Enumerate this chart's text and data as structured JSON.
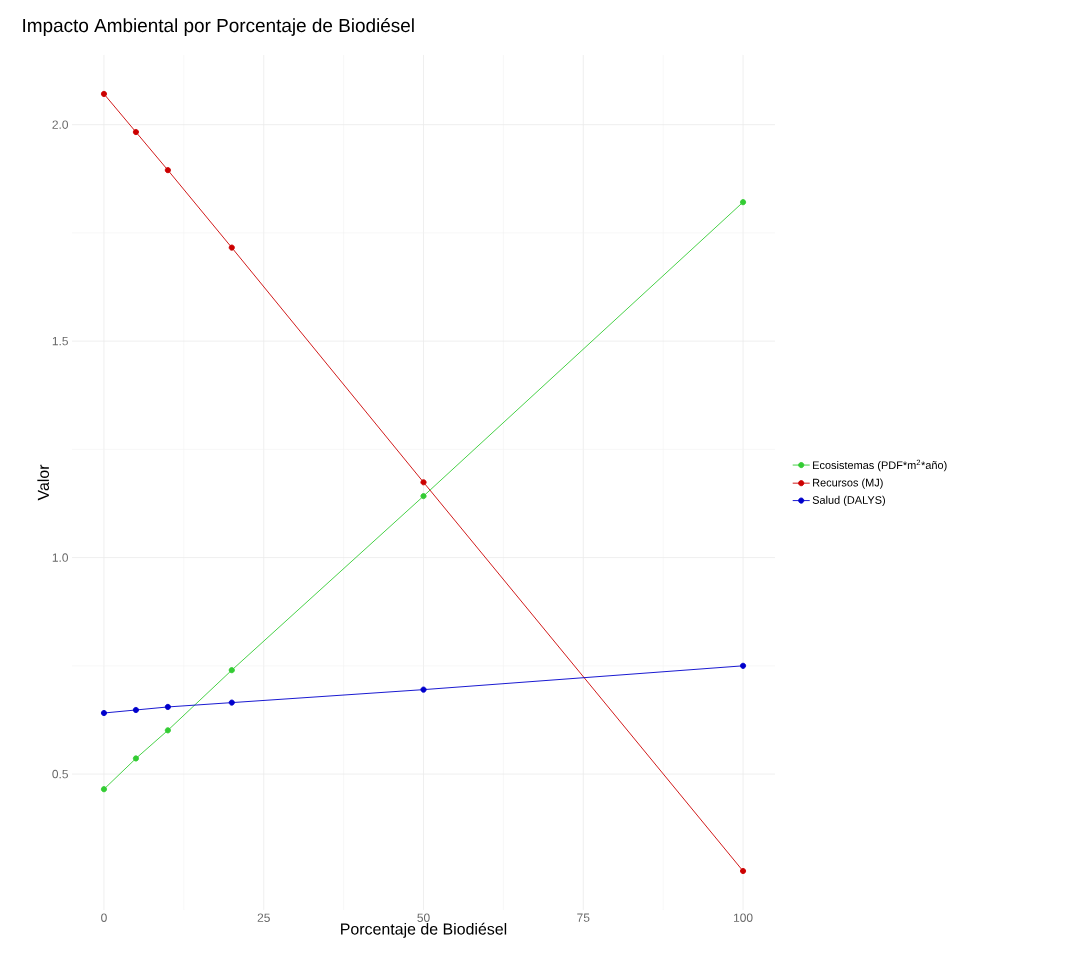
{
  "chart_data": {
    "type": "line",
    "title": "Impacto Ambiental por Porcentaje de Biodiésel",
    "xlabel": "Porcentaje de Biodiésel",
    "ylabel": "Valor",
    "x": [
      0,
      5,
      10,
      20,
      50,
      100
    ],
    "series": [
      {
        "name": "Ecosistemas (PDF*m$^{2}$*año)",
        "color": "#33cc33",
        "values": [
          0.465,
          0.536,
          0.601,
          0.74,
          1.142,
          1.821
        ]
      },
      {
        "name": "Recursos (MJ)",
        "color": "#cc0000",
        "values": [
          2.071,
          1.983,
          1.895,
          1.716,
          1.174,
          0.276
        ]
      },
      {
        "name": "Salud (DALYS)",
        "color": "#0000cc",
        "values": [
          0.641,
          0.648,
          0.655,
          0.665,
          0.695,
          0.75
        ]
      }
    ],
    "xlim": [
      -5,
      105
    ],
    "ylim": [
      0.186,
      2.161
    ],
    "xticks": [
      0,
      25,
      50,
      75,
      100
    ],
    "yticks": [
      0.5,
      {
        "value": 1.0,
        "label": "1.0"
      },
      1.5,
      {
        "value": 2.0,
        "label": "2.0"
      }
    ],
    "grid": true,
    "legend": "right",
    "marker": "circle",
    "line_style": "solid"
  }
}
